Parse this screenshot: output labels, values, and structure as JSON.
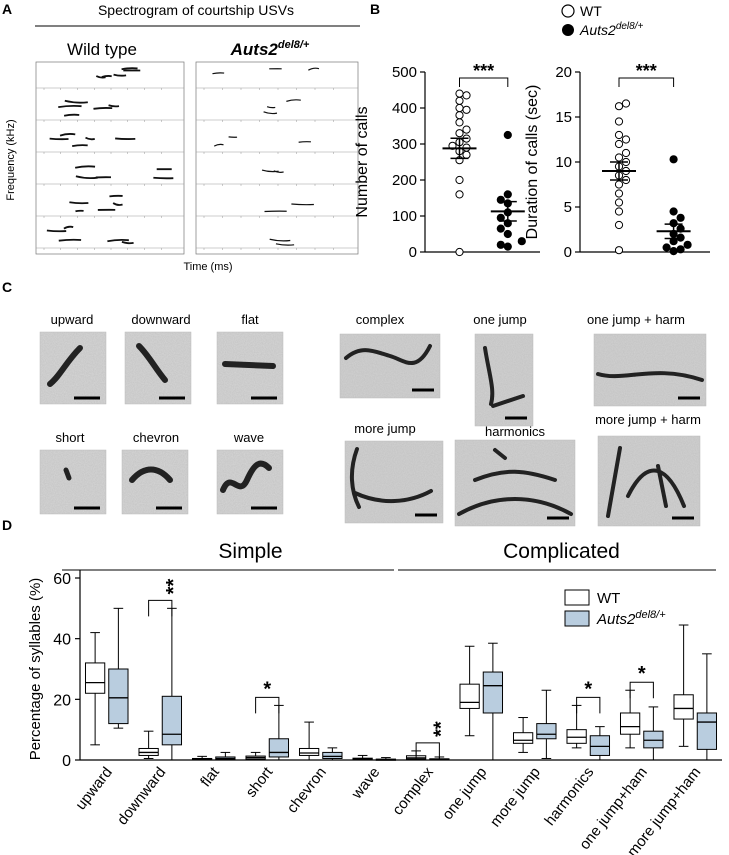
{
  "colors": {
    "wt_fill": "#ffffff",
    "mut_fill": "#b9cddf",
    "simple": "#2b2a6e",
    "complicated": "#7a1f1f"
  },
  "panel_letters": {
    "a": "A",
    "b": "B",
    "c": "C",
    "d": "D"
  },
  "panel_a": {
    "title": "Spectrogram of courtship USVs",
    "wt_label": "Wild type",
    "mut_label_base": "Auts2",
    "mut_label_sup": "del8/+",
    "ylabel": "Frequency (kHz)",
    "xlabel": "Time (ms)"
  },
  "panel_b_legend": {
    "wt": "WT",
    "mut_base": "Auts2",
    "mut_sup": "del8/+"
  },
  "panel_c": {
    "simple_labels": [
      "upward",
      "downward",
      "flat",
      "short",
      "chevron",
      "wave"
    ],
    "complicated_labels": [
      "complex",
      "one jump",
      "one jump + harm",
      "more jump",
      "harmonics",
      "more jump + harm"
    ]
  },
  "chart_data": [
    {
      "type": "scatter",
      "panel": "B-left",
      "ylabel": "Number of calls",
      "ylim": [
        0,
        500
      ],
      "yticks": [
        0,
        100,
        200,
        300,
        400,
        500
      ],
      "significance": "***",
      "series": [
        {
          "name": "WT",
          "values": [
            440,
            435,
            420,
            400,
            395,
            380,
            360,
            340,
            330,
            315,
            305,
            295,
            290,
            280,
            270,
            255,
            200,
            160,
            0
          ],
          "mean": 288,
          "sem": 28
        },
        {
          "name": "Auts2del8/+",
          "values": [
            325,
            160,
            145,
            135,
            110,
            95,
            80,
            65,
            50,
            30,
            20,
            15
          ],
          "mean": 113,
          "sem": 27
        }
      ]
    },
    {
      "type": "scatter",
      "panel": "B-right",
      "ylabel": "Duration of calls (sec)",
      "ylim": [
        0,
        20
      ],
      "yticks": [
        0,
        5,
        10,
        15,
        20
      ],
      "significance": "***",
      "series": [
        {
          "name": "WT",
          "values": [
            16.5,
            16.2,
            14.5,
            13.0,
            12.5,
            12.0,
            11.0,
            10.5,
            10.0,
            9.5,
            9.0,
            8.5,
            8.0,
            7.5,
            6.5,
            5.5,
            4.5,
            3.0,
            0.2
          ],
          "mean": 9.0,
          "sem": 1.0
        },
        {
          "name": "Auts2del8/+",
          "values": [
            10.3,
            4.5,
            3.8,
            3.2,
            2.6,
            2.0,
            1.6,
            1.2,
            0.8,
            0.5,
            0.3,
            0.1
          ],
          "mean": 2.3,
          "sem": 0.8
        }
      ]
    },
    {
      "type": "box",
      "panel": "D",
      "ylabel": "Percentage of syllables (%)",
      "ylim": [
        0,
        60
      ],
      "yticks": [
        0,
        20,
        40,
        60
      ],
      "group_titles": [
        "Simple",
        "Complicated"
      ],
      "categories": [
        "upward",
        "downward",
        "flat",
        "short",
        "chevron",
        "wave",
        "complex",
        "one jump",
        "more jump",
        "harmonics",
        "one jump+ham",
        "more jump+ham"
      ],
      "category_groups": [
        "simple",
        "simple",
        "simple",
        "simple",
        "simple",
        "simple",
        "complicated",
        "complicated",
        "complicated",
        "complicated",
        "complicated",
        "complicated"
      ],
      "legend": [
        "WT",
        "Auts2del8/+"
      ],
      "series": [
        {
          "name": "WT",
          "boxes": [
            [
              5,
              22,
              25.5,
              32,
              42
            ],
            [
              0.5,
              1.5,
              2.5,
              3.8,
              9.5
            ],
            [
              0,
              0.2,
              0.3,
              0.5,
              1.2
            ],
            [
              0,
              0.3,
              0.8,
              1.3,
              2.5
            ],
            [
              0,
              1.5,
              2.3,
              3.8,
              12.5
            ],
            [
              0,
              0.1,
              0.3,
              0.6,
              1.5
            ],
            [
              0,
              0.3,
              0.7,
              1.4,
              3
            ],
            [
              8,
              17,
              19,
              25,
              37.5
            ],
            [
              2.5,
              5.5,
              6.5,
              9,
              14
            ],
            [
              4,
              5.5,
              7.5,
              10,
              18
            ],
            [
              4,
              8.5,
              11,
              15.5,
              23
            ],
            [
              4.5,
              13.5,
              17,
              21.5,
              44.5
            ]
          ]
        },
        {
          "name": "Auts2del8/+",
          "boxes": [
            [
              10.5,
              12,
              20.5,
              30,
              50
            ],
            [
              0,
              5,
              8.5,
              21,
              50
            ],
            [
              0,
              0.2,
              0.5,
              1,
              2.5
            ],
            [
              0,
              1,
              2.5,
              7,
              18
            ],
            [
              0,
              0.5,
              1.2,
              2.5,
              4
            ],
            [
              0,
              0,
              0.1,
              0.3,
              0.8
            ],
            [
              0,
              0,
              0.2,
              0.4,
              1
            ],
            [
              0,
              15.5,
              24.5,
              29,
              38.5
            ],
            [
              0.5,
              7,
              8.5,
              12,
              23
            ],
            [
              0,
              1.5,
              4.5,
              8,
              11
            ],
            [
              0,
              4,
              6.5,
              9.5,
              17.5
            ],
            [
              0,
              3.5,
              12.5,
              15.5,
              35
            ]
          ]
        }
      ],
      "significance": [
        {
          "category": "downward",
          "label": "**"
        },
        {
          "category": "short",
          "label": "*"
        },
        {
          "category": "complex",
          "label": "**"
        },
        {
          "category": "harmonics",
          "label": "*"
        },
        {
          "category": "one jump+ham",
          "label": "*"
        }
      ]
    }
  ]
}
